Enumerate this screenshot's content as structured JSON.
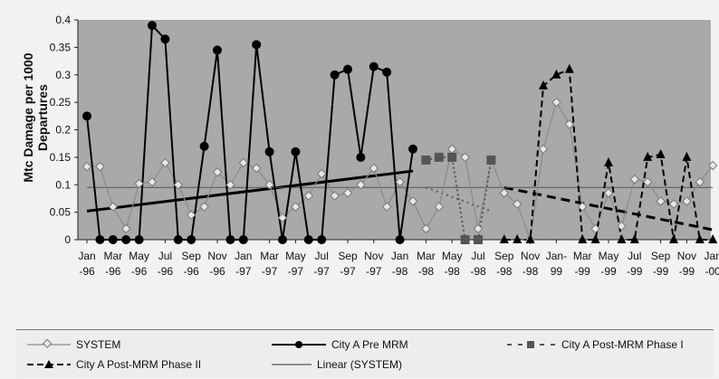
{
  "chart_data": {
    "type": "line",
    "ylabel": "Mtc Damage per 1000 Departures",
    "ylim": [
      0,
      0.4
    ],
    "yticks": [
      "0",
      "0.05",
      "0.1",
      "0.15",
      "0.2",
      "0.25",
      "0.3",
      "0.35",
      "0.4"
    ],
    "xticks": [
      [
        "Jan",
        "-96"
      ],
      [
        "Mar",
        "-96"
      ],
      [
        "May",
        "-96"
      ],
      [
        "Jul",
        "-96"
      ],
      [
        "Sep",
        "-96"
      ],
      [
        "Nov",
        "-96"
      ],
      [
        "Jan",
        "-97"
      ],
      [
        "Mar",
        "-97"
      ],
      [
        "May",
        "-97"
      ],
      [
        "Jul",
        "-97"
      ],
      [
        "Sep",
        "-97"
      ],
      [
        "Nov",
        "-97"
      ],
      [
        "Jan",
        "-98"
      ],
      [
        "Mar",
        "-98"
      ],
      [
        "May",
        "-98"
      ],
      [
        "Jul",
        "-98"
      ],
      [
        "Sep",
        "-98"
      ],
      [
        "Nov",
        "-98"
      ],
      [
        "Jan-",
        "99"
      ],
      [
        "Mar",
        "-99"
      ],
      [
        "May",
        "-99"
      ],
      [
        "Jul",
        "-99"
      ],
      [
        "Sep",
        "-99"
      ],
      [
        "Nov",
        "-99"
      ],
      [
        "Jan",
        "-00"
      ]
    ],
    "grid": false,
    "legend_position": "bottom",
    "series": [
      {
        "name": "SYSTEM",
        "x": [
          0,
          1,
          2,
          3,
          4,
          5,
          6,
          7,
          8,
          9,
          10,
          11,
          12,
          13,
          14,
          15,
          16,
          17,
          18,
          19,
          20,
          21,
          22,
          23,
          24,
          25,
          26,
          27,
          28,
          29,
          30,
          31,
          32,
          33,
          34,
          35,
          36,
          37,
          38,
          39,
          40,
          41,
          42,
          43,
          44,
          45,
          46,
          47,
          48
        ],
        "y": [
          0.133,
          0.133,
          0.06,
          0.02,
          0.102,
          0.105,
          0.14,
          0.1,
          0.045,
          0.06,
          0.123,
          0.1,
          0.14,
          0.13,
          0.1,
          0.04,
          0.06,
          0.08,
          0.12,
          0.08,
          0.085,
          0.1,
          0.13,
          0.06,
          0.105,
          0.07,
          0.02,
          0.06,
          0.165,
          0.15,
          0.02,
          0.145,
          0.085,
          0.065,
          0.0,
          0.165,
          0.25,
          0.21,
          0.06,
          0.02,
          0.085,
          0.025,
          0.11,
          0.105,
          0.07,
          0.065,
          0.07,
          0.105,
          0.135
        ]
      },
      {
        "name": "City A Pre MRM",
        "x": [
          0,
          1,
          2,
          3,
          4,
          5,
          6,
          7,
          8,
          9,
          10,
          11,
          12,
          13,
          14,
          15,
          16,
          17,
          18,
          19,
          20,
          21,
          22,
          23,
          24,
          25
        ],
        "y": [
          0.225,
          0.0,
          0.0,
          0.0,
          0.0,
          0.39,
          0.365,
          0.0,
          0.0,
          0.17,
          0.345,
          0.0,
          0.0,
          0.355,
          0.16,
          0.0,
          0.16,
          0.0,
          0.0,
          0.3,
          0.31,
          0.15,
          0.315,
          0.305,
          0.0,
          0.165
        ]
      },
      {
        "name": "City A Post-MRM Phase I",
        "x": [
          26,
          27,
          28,
          29,
          30,
          31
        ],
        "y": [
          0.145,
          0.15,
          0.15,
          0.0,
          0.0,
          0.145
        ]
      },
      {
        "name": "City A Post-MRM Phase II",
        "x": [
          32,
          33,
          34,
          35,
          36,
          37,
          38,
          39,
          40,
          41,
          42,
          43,
          44,
          45,
          46,
          47,
          48
        ],
        "y": [
          0.0,
          0.0,
          0.0,
          0.28,
          0.3,
          0.31,
          0.0,
          0.0,
          0.14,
          0.0,
          0.0,
          0.15,
          0.155,
          0.0,
          0.15,
          0.0,
          0.0
        ]
      },
      {
        "name": "Linear (SYSTEM)",
        "x": [
          0,
          48
        ],
        "y": [
          0.095,
          0.095
        ]
      }
    ],
    "trendlines": [
      {
        "series": "City A Pre MRM",
        "x": [
          0,
          25
        ],
        "y": [
          0.052,
          0.125
        ]
      },
      {
        "series": "City A Post-MRM Phase I",
        "x": [
          26,
          31
        ],
        "y": [
          0.095,
          0.052
        ]
      },
      {
        "series": "City A Post-MRM Phase II",
        "x": [
          32,
          48
        ],
        "y": [
          0.095,
          0.018
        ]
      }
    ],
    "colors": {
      "plot_background": "#a9a9a9",
      "system": "#8a8a8a",
      "system_marker_fill": "#e8e8e8",
      "series_dark": "#000000"
    }
  }
}
